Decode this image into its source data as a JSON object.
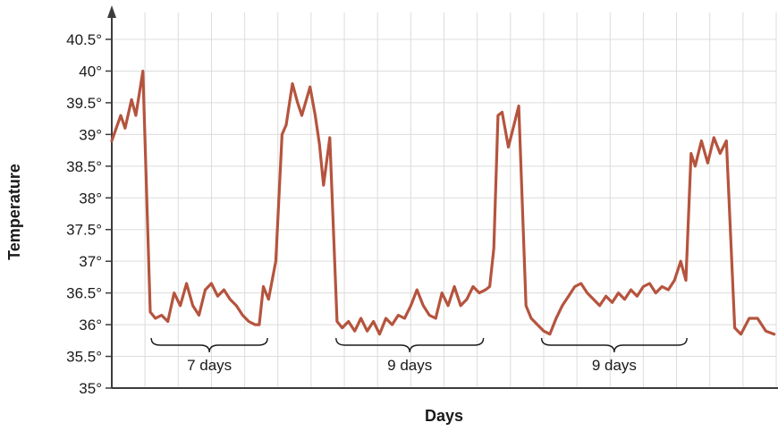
{
  "chart_data": {
    "type": "line",
    "title": "",
    "xlabel": "Days",
    "ylabel": "Temperature",
    "line_color": "#b5543e",
    "axis_color": "#3c3c3c",
    "grid_color": "#dcdcdc",
    "text_color": "#1a1a1a",
    "grid": true,
    "ylim": [
      35,
      40.5
    ],
    "ytick_step": 0.5,
    "ytick_labels": [
      "35°",
      "35.5°",
      "36°",
      "36.5°",
      "37°",
      "37.5°",
      "38°",
      "38.5°",
      "39°",
      "39.5°",
      "40°",
      "40.5°"
    ],
    "xlim": [
      0,
      32
    ],
    "points": [
      [
        0,
        38.9
      ],
      [
        0.43,
        39.3
      ],
      [
        0.64,
        39.1
      ],
      [
        0.95,
        39.55
      ],
      [
        1.16,
        39.3
      ],
      [
        1.5,
        40
      ],
      [
        1.85,
        36.2
      ],
      [
        2.1,
        36.1
      ],
      [
        2.4,
        36.15
      ],
      [
        2.7,
        36.05
      ],
      [
        3.0,
        36.5
      ],
      [
        3.3,
        36.3
      ],
      [
        3.6,
        36.65
      ],
      [
        3.9,
        36.3
      ],
      [
        4.2,
        36.15
      ],
      [
        4.5,
        36.55
      ],
      [
        4.8,
        36.65
      ],
      [
        5.1,
        36.45
      ],
      [
        5.4,
        36.55
      ],
      [
        5.7,
        36.4
      ],
      [
        6.0,
        36.3
      ],
      [
        6.3,
        36.15
      ],
      [
        6.6,
        36.05
      ],
      [
        6.9,
        36.0
      ],
      [
        7.1,
        36.0
      ],
      [
        7.3,
        36.6
      ],
      [
        7.55,
        36.4
      ],
      [
        7.9,
        37.0
      ],
      [
        8.2,
        39.0
      ],
      [
        8.4,
        39.15
      ],
      [
        8.7,
        39.8
      ],
      [
        8.95,
        39.5
      ],
      [
        9.15,
        39.3
      ],
      [
        9.55,
        39.75
      ],
      [
        9.8,
        39.3
      ],
      [
        10.0,
        38.85
      ],
      [
        10.2,
        38.2
      ],
      [
        10.5,
        38.95
      ],
      [
        10.85,
        36.05
      ],
      [
        11.1,
        35.95
      ],
      [
        11.4,
        36.05
      ],
      [
        11.7,
        35.9
      ],
      [
        12.0,
        36.1
      ],
      [
        12.3,
        35.9
      ],
      [
        12.6,
        36.05
      ],
      [
        12.9,
        35.85
      ],
      [
        13.2,
        36.1
      ],
      [
        13.5,
        36.0
      ],
      [
        13.8,
        36.15
      ],
      [
        14.1,
        36.1
      ],
      [
        14.4,
        36.3
      ],
      [
        14.7,
        36.55
      ],
      [
        15.0,
        36.3
      ],
      [
        15.3,
        36.15
      ],
      [
        15.6,
        36.1
      ],
      [
        15.9,
        36.5
      ],
      [
        16.2,
        36.3
      ],
      [
        16.5,
        36.6
      ],
      [
        16.8,
        36.3
      ],
      [
        17.1,
        36.4
      ],
      [
        17.4,
        36.6
      ],
      [
        17.7,
        36.5
      ],
      [
        18.0,
        36.55
      ],
      [
        18.2,
        36.6
      ],
      [
        18.4,
        37.2
      ],
      [
        18.6,
        39.3
      ],
      [
        18.8,
        39.35
      ],
      [
        19.1,
        38.8
      ],
      [
        19.6,
        39.45
      ],
      [
        19.95,
        36.3
      ],
      [
        20.2,
        36.1
      ],
      [
        20.5,
        36.0
      ],
      [
        20.8,
        35.9
      ],
      [
        21.1,
        35.85
      ],
      [
        21.4,
        36.1
      ],
      [
        21.7,
        36.3
      ],
      [
        22.0,
        36.45
      ],
      [
        22.3,
        36.6
      ],
      [
        22.6,
        36.65
      ],
      [
        22.9,
        36.5
      ],
      [
        23.2,
        36.4
      ],
      [
        23.5,
        36.3
      ],
      [
        23.8,
        36.45
      ],
      [
        24.1,
        36.35
      ],
      [
        24.4,
        36.5
      ],
      [
        24.7,
        36.4
      ],
      [
        25.0,
        36.55
      ],
      [
        25.3,
        36.45
      ],
      [
        25.6,
        36.6
      ],
      [
        25.9,
        36.65
      ],
      [
        26.2,
        36.5
      ],
      [
        26.5,
        36.6
      ],
      [
        26.8,
        36.55
      ],
      [
        27.1,
        36.7
      ],
      [
        27.4,
        37.0
      ],
      [
        27.65,
        36.7
      ],
      [
        27.9,
        38.7
      ],
      [
        28.1,
        38.5
      ],
      [
        28.4,
        38.9
      ],
      [
        28.7,
        38.55
      ],
      [
        29.0,
        38.95
      ],
      [
        29.3,
        38.7
      ],
      [
        29.6,
        38.9
      ],
      [
        30.0,
        35.95
      ],
      [
        30.3,
        35.85
      ],
      [
        30.7,
        36.1
      ],
      [
        31.1,
        36.1
      ],
      [
        31.5,
        35.9
      ],
      [
        31.9,
        35.85
      ]
    ],
    "annotations": [
      {
        "label": "7 days",
        "x_start": 1.9,
        "x_end": 7.5
      },
      {
        "label": "9 days",
        "x_start": 10.8,
        "x_end": 17.9
      },
      {
        "label": "9 days",
        "x_start": 20.7,
        "x_end": 27.7
      }
    ],
    "legend": "none"
  }
}
